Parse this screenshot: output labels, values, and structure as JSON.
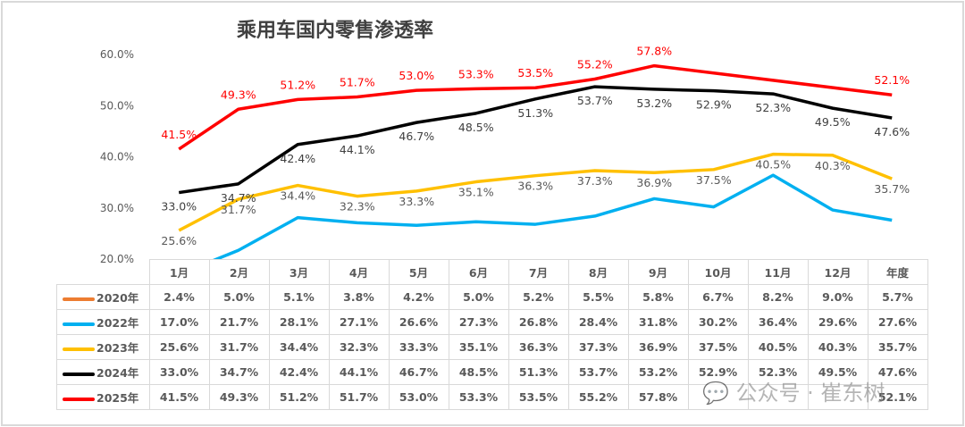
{
  "chart_data": {
    "type": "line",
    "title": "乘用车国内零售渗透率",
    "categories": [
      "1月",
      "2月",
      "3月",
      "4月",
      "5月",
      "6月",
      "7月",
      "8月",
      "9月",
      "10月",
      "11月",
      "12月",
      "年度"
    ],
    "ylim": [
      20,
      60
    ],
    "yticks": [
      "20.0%",
      "30.0%",
      "40.0%",
      "50.0%",
      "60.0%"
    ],
    "legend": "table-left",
    "series": [
      {
        "name": "2020年",
        "color": "#ed7d31",
        "values": [
          2.4,
          5.0,
          5.1,
          3.8,
          4.2,
          5.0,
          5.2,
          5.5,
          5.8,
          6.7,
          8.2,
          9.0,
          5.7
        ],
        "labels": false
      },
      {
        "name": "2022年",
        "color": "#00b0f0",
        "values": [
          17.0,
          21.7,
          28.1,
          27.1,
          26.6,
          27.3,
          26.8,
          28.4,
          31.8,
          30.2,
          36.4,
          29.6,
          27.6
        ],
        "labels": false
      },
      {
        "name": "2023年",
        "color": "#ffc000",
        "values": [
          25.6,
          31.7,
          34.4,
          32.3,
          33.3,
          35.1,
          36.3,
          37.3,
          36.9,
          37.5,
          40.5,
          40.3,
          35.7
        ],
        "labels": true,
        "label_color": "#595959"
      },
      {
        "name": "2024年",
        "color": "#000000",
        "values": [
          33.0,
          34.7,
          42.4,
          44.1,
          46.7,
          48.5,
          51.3,
          53.7,
          53.2,
          52.9,
          52.3,
          49.5,
          47.6
        ],
        "labels": true,
        "label_color": "#404040"
      },
      {
        "name": "2025年",
        "color": "#ff0000",
        "values": [
          41.5,
          49.3,
          51.2,
          51.7,
          53.0,
          53.3,
          53.5,
          55.2,
          57.8,
          null,
          null,
          null,
          52.1
        ],
        "labels": true,
        "label_color": "#ff0000"
      }
    ]
  },
  "watermark": "公众号 · 崔东树"
}
